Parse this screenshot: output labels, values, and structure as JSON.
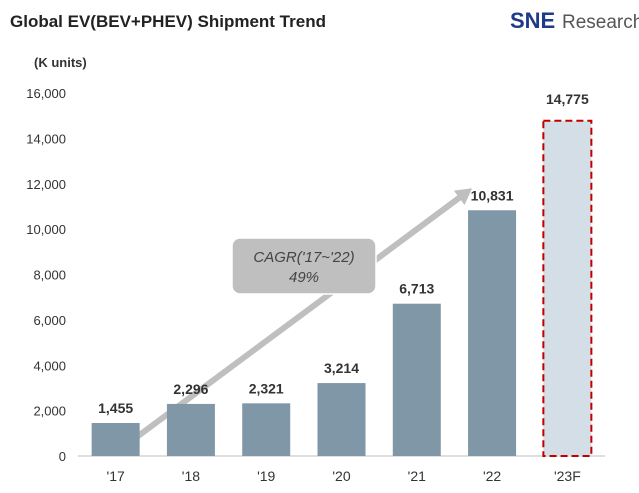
{
  "title": "Global EV(BEV+PHEV)  Shipment Trend",
  "logo": {
    "sne": "SNE",
    "research": "Research"
  },
  "colors": {
    "bar": "#7F97A6",
    "forecast_fill": "#D3DEE6",
    "forecast_border": "#C00000",
    "forecast_label": "#C00000",
    "arrow": "#BFBFBF",
    "cagr_box": "#BFBFBF",
    "logo_sne": "#1E3A8A",
    "logo_accent": "#22A559"
  },
  "chart_data": {
    "type": "bar",
    "ylabel": "(K units)",
    "ylim": [
      0,
      16000
    ],
    "yticks": [
      "0",
      "2,000",
      "4,000",
      "6,000",
      "8,000",
      "10,000",
      "12,000",
      "14,000",
      "16,000"
    ],
    "categories": [
      "'17",
      "'18",
      "'19",
      "'20",
      "'21",
      "'22",
      "'23F"
    ],
    "values": [
      1455,
      2296,
      2321,
      3214,
      6713,
      10831,
      14775
    ],
    "value_labels": [
      "1,455",
      "2,296",
      "2,321",
      "3,214",
      "6,713",
      "10,831",
      "14,775"
    ],
    "forecast_index": 6,
    "annotation": {
      "line1": "CAGR('17~'22)",
      "line2": "49%"
    }
  }
}
